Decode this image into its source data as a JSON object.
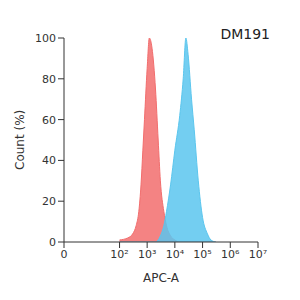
{
  "chart_data": {
    "type": "area",
    "annotation": "DM191",
    "x_label": "APC-A",
    "y_label": "Count (%)",
    "log": "x",
    "xlim": [
      0,
      10000000
    ],
    "xticks": [
      0,
      {
        "value": 100,
        "label": "10²"
      },
      {
        "value": 1000,
        "label": "10³"
      },
      {
        "value": 10000,
        "label": "10⁴"
      },
      {
        "value": 100000,
        "label": "10⁵"
      },
      {
        "value": 1000000,
        "label": "10⁶"
      },
      {
        "value": 10000000,
        "label": "10⁷"
      }
    ],
    "ylim": [
      0,
      100
    ],
    "yticks": [
      0,
      20,
      40,
      60,
      80,
      100
    ],
    "grid": false,
    "x": [
      100,
      200,
      300,
      400,
      500,
      600,
      700,
      800,
      1000,
      1200,
      1500,
      2000,
      2500,
      3000,
      4000,
      5000,
      7000,
      10000,
      15000,
      20000,
      25000,
      30000,
      40000,
      50000,
      70000,
      100000,
      150000,
      200000,
      300000
    ],
    "series": [
      {
        "color": "#f26d6d",
        "values": [
          1,
          2,
          4,
          8,
          15,
          28,
          45,
          60,
          85,
          100,
          95,
          75,
          50,
          30,
          15,
          8,
          3,
          1,
          0,
          0,
          0,
          0,
          0,
          0,
          0,
          0,
          0,
          0,
          0
        ]
      },
      {
        "color": "#5bc6ee",
        "values": [
          0,
          0,
          0,
          0,
          0,
          0,
          0,
          0,
          0,
          0,
          0,
          0,
          1,
          3,
          8,
          15,
          28,
          45,
          62,
          80,
          100,
          92,
          70,
          55,
          30,
          12,
          4,
          1,
          0
        ]
      }
    ]
  }
}
